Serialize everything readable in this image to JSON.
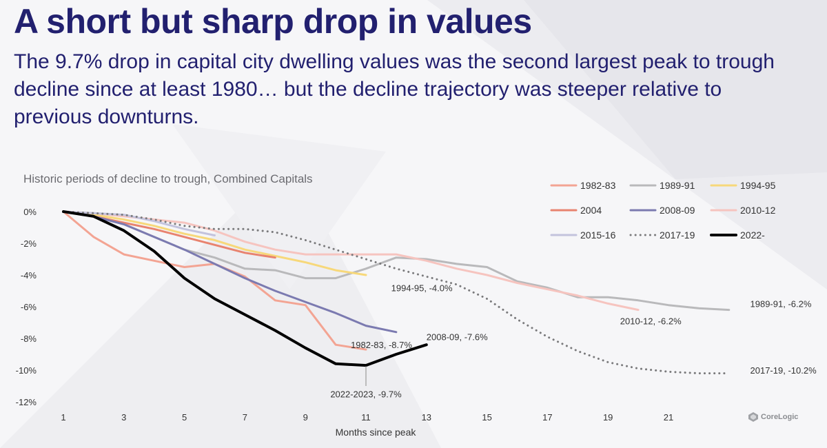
{
  "header": {
    "title": "A short but sharp drop in values",
    "subtitle": "The 9.7% drop in capital city dwelling values was the second largest peak to trough decline since at least 1980… but the decline trajectory was steeper relative to previous downturns."
  },
  "brand": {
    "logo_text": "CoreLogic"
  },
  "chart_data": {
    "type": "line",
    "title": "Historic periods of decline to trough, Combined Capitals",
    "xlabel": "Months since peak",
    "ylabel": "",
    "xlim": [
      1,
      24
    ],
    "ylim": [
      -12,
      0
    ],
    "x_ticks": [
      1,
      3,
      5,
      7,
      9,
      11,
      13,
      15,
      17,
      19,
      21
    ],
    "y_ticks": [
      0,
      -2,
      -4,
      -6,
      -8,
      -10,
      -12
    ],
    "y_tick_labels": [
      "0%",
      "-2%",
      "-4%",
      "-6%",
      "-8%",
      "-10%",
      "-12%"
    ],
    "legend_position": "top-right",
    "series": [
      {
        "name": "1982-83",
        "color": "#f3a493",
        "dash": "solid",
        "width": 3,
        "x": [
          1,
          2,
          3,
          4,
          5,
          6,
          7,
          8,
          9,
          10,
          11
        ],
        "y": [
          0,
          -1.6,
          -2.7,
          -3.1,
          -3.5,
          -3.3,
          -4.1,
          -5.6,
          -5.9,
          -8.4,
          -8.7
        ]
      },
      {
        "name": "1989-91",
        "color": "#b9b9bb",
        "dash": "solid",
        "width": 3,
        "x": [
          1,
          2,
          3,
          4,
          5,
          6,
          7,
          8,
          9,
          10,
          11,
          12,
          13,
          14,
          15,
          16,
          17,
          18,
          19,
          20,
          21,
          22,
          23
        ],
        "y": [
          0,
          -0.3,
          -0.8,
          -1.6,
          -2.4,
          -2.9,
          -3.6,
          -3.7,
          -4.2,
          -4.2,
          -3.6,
          -2.9,
          -3.0,
          -3.3,
          -3.5,
          -4.4,
          -4.8,
          -5.4,
          -5.4,
          -5.6,
          -5.9,
          -6.1,
          -6.2
        ]
      },
      {
        "name": "1994-95",
        "color": "#f7d87a",
        "dash": "solid",
        "width": 3,
        "x": [
          1,
          2,
          3,
          4,
          5,
          6,
          7,
          8,
          9,
          10,
          11
        ],
        "y": [
          0,
          -0.2,
          -0.5,
          -0.9,
          -1.4,
          -1.8,
          -2.4,
          -2.8,
          -3.2,
          -3.7,
          -4.0
        ]
      },
      {
        "name": "2004",
        "color": "#e8836f",
        "dash": "solid",
        "width": 3,
        "x": [
          1,
          2,
          3,
          4,
          5,
          6,
          7,
          8
        ],
        "y": [
          0,
          -0.3,
          -0.7,
          -1.1,
          -1.6,
          -2.1,
          -2.6,
          -2.9
        ]
      },
      {
        "name": "2008-09",
        "color": "#7b7ab0",
        "dash": "solid",
        "width": 3,
        "x": [
          1,
          2,
          3,
          4,
          5,
          6,
          7,
          8,
          9,
          10,
          11,
          12
        ],
        "y": [
          0,
          -0.3,
          -0.8,
          -1.6,
          -2.4,
          -3.3,
          -4.2,
          -5.0,
          -5.7,
          -6.4,
          -7.2,
          -7.6
        ]
      },
      {
        "name": "2010-12",
        "color": "#f6c4bf",
        "dash": "solid",
        "width": 3,
        "x": [
          1,
          2,
          3,
          4,
          5,
          6,
          7,
          8,
          9,
          10,
          11,
          12,
          13,
          14,
          15,
          16,
          17,
          18,
          19,
          20
        ],
        "y": [
          0,
          -0.1,
          -0.3,
          -0.5,
          -0.7,
          -1.2,
          -1.9,
          -2.4,
          -2.7,
          -2.7,
          -2.7,
          -2.7,
          -3.1,
          -3.6,
          -4.0,
          -4.5,
          -4.9,
          -5.3,
          -5.8,
          -6.2
        ]
      },
      {
        "name": "2015-16",
        "color": "#c3c3dd",
        "dash": "solid",
        "width": 3,
        "x": [
          1,
          2,
          3,
          4,
          5,
          6
        ],
        "y": [
          0,
          -0.1,
          -0.2,
          -0.6,
          -1.1,
          -1.5
        ]
      },
      {
        "name": "2017-19",
        "color": "#7a7a7c",
        "dash": "dotted",
        "width": 3,
        "x": [
          1,
          2,
          3,
          4,
          5,
          6,
          7,
          8,
          9,
          10,
          11,
          12,
          13,
          14,
          15,
          16,
          17,
          18,
          19,
          20,
          21,
          22,
          23
        ],
        "y": [
          0,
          -0.1,
          -0.2,
          -0.5,
          -0.9,
          -1.1,
          -1.1,
          -1.3,
          -1.8,
          -2.4,
          -3.0,
          -3.6,
          -4.1,
          -4.6,
          -5.5,
          -6.8,
          -7.9,
          -8.8,
          -9.5,
          -9.9,
          -10.1,
          -10.2,
          -10.2
        ]
      },
      {
        "name": "2022-",
        "color": "#000000",
        "dash": "solid",
        "width": 4,
        "x": [
          1,
          2,
          3,
          4,
          5,
          6,
          7,
          8,
          9,
          10,
          11,
          12,
          13
        ],
        "y": [
          0,
          -0.3,
          -1.2,
          -2.5,
          -4.2,
          -5.5,
          -6.5,
          -7.5,
          -8.6,
          -9.6,
          -9.7,
          -9.0,
          -8.4
        ]
      }
    ],
    "annotations": [
      {
        "text": "1994-95, -4.0%",
        "x": 12.2,
        "y": -4.8
      },
      {
        "text": "1989-91, -6.2%",
        "x": 23.7,
        "y": -5.8
      },
      {
        "text": "2010-12, -6.2%",
        "x": 19.4,
        "y": -6.9
      },
      {
        "text": "2008-09, -7.6%",
        "x": 13.0,
        "y": -7.9
      },
      {
        "text": "1982-83, -8.7%",
        "x": 10.5,
        "y": -8.4
      },
      {
        "text": "2017-19, -10.2%",
        "x": 23.7,
        "y": -10.0
      },
      {
        "text": "2022-2023, -9.7%",
        "x": 11.0,
        "y": -11.5
      }
    ]
  }
}
